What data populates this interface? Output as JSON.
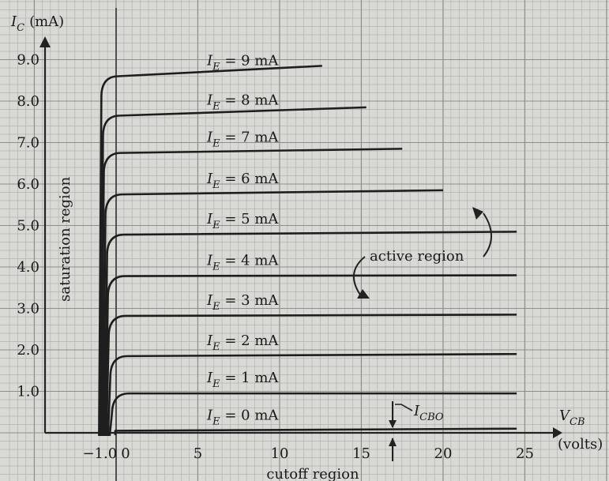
{
  "chart_data": {
    "type": "line",
    "title": "",
    "y_axis": {
      "symbol": "I",
      "subscript": "C",
      "unit": "(mA)"
    },
    "x_axis": {
      "symbol": "V",
      "subscript": "CB",
      "unit": "(volts)"
    },
    "xlim": [
      -1.0,
      25
    ],
    "ylim": [
      0,
      9.0
    ],
    "x_ticks": [
      "−1.0",
      "0",
      "5",
      "10",
      "15",
      "20",
      "25"
    ],
    "y_ticks": [
      "1.0",
      "2.0",
      "3.0",
      "4.0",
      "5.0",
      "6.0",
      "7.0",
      "8.0",
      "9.0"
    ],
    "grid": true,
    "series": [
      {
        "name": "I_E = 0 mA",
        "base": "I",
        "sub": "E",
        "value_text": " = 0 mA",
        "knee_x": -0.1,
        "x_end": 24.5,
        "y_start": 0.05,
        "y_end": 0.1
      },
      {
        "name": "I_E = 1 mA",
        "base": "I",
        "sub": "E",
        "value_text": " = 1 mA",
        "knee_x": -0.25,
        "x_end": 24.5,
        "y_start": 0.95,
        "y_end": 0.95
      },
      {
        "name": "I_E = 2 mA",
        "base": "I",
        "sub": "E",
        "value_text": " = 2 mA",
        "knee_x": -0.35,
        "x_end": 24.5,
        "y_start": 1.85,
        "y_end": 1.9
      },
      {
        "name": "I_E = 3 mA",
        "base": "I",
        "sub": "E",
        "value_text": " = 3 mA",
        "knee_x": -0.45,
        "x_end": 24.5,
        "y_start": 2.82,
        "y_end": 2.85
      },
      {
        "name": "I_E = 4 mA",
        "base": "I",
        "sub": "E",
        "value_text": " = 4 mA",
        "knee_x": -0.5,
        "x_end": 24.5,
        "y_start": 3.78,
        "y_end": 3.8
      },
      {
        "name": "I_E = 5 mA",
        "base": "I",
        "sub": "E",
        "value_text": " = 5 mA",
        "knee_x": -0.55,
        "x_end": 24.5,
        "y_start": 4.78,
        "y_end": 4.85
      },
      {
        "name": "I_E = 6 mA",
        "base": "I",
        "sub": "E",
        "value_text": " = 6 mA",
        "knee_x": -0.65,
        "x_end": 20.0,
        "y_start": 5.75,
        "y_end": 5.85
      },
      {
        "name": "I_E = 7 mA",
        "base": "I",
        "sub": "E",
        "value_text": " = 7 mA",
        "knee_x": -0.75,
        "x_end": 17.5,
        "y_start": 6.75,
        "y_end": 6.85
      },
      {
        "name": "I_E = 8 mA",
        "base": "I",
        "sub": "E",
        "value_text": " = 8 mA",
        "knee_x": -0.8,
        "x_end": 15.3,
        "y_start": 7.65,
        "y_end": 7.85
      },
      {
        "name": "I_E = 9 mA",
        "base": "I",
        "sub": "E",
        "value_text": " = 9 mA",
        "knee_x": -0.9,
        "x_end": 12.6,
        "y_start": 8.6,
        "y_end": 8.85
      }
    ],
    "annotations": {
      "saturation": "saturation region",
      "active": "active region",
      "cutoff": "cutoff region",
      "icbo": {
        "base": "I",
        "sub": "CBO"
      }
    }
  }
}
